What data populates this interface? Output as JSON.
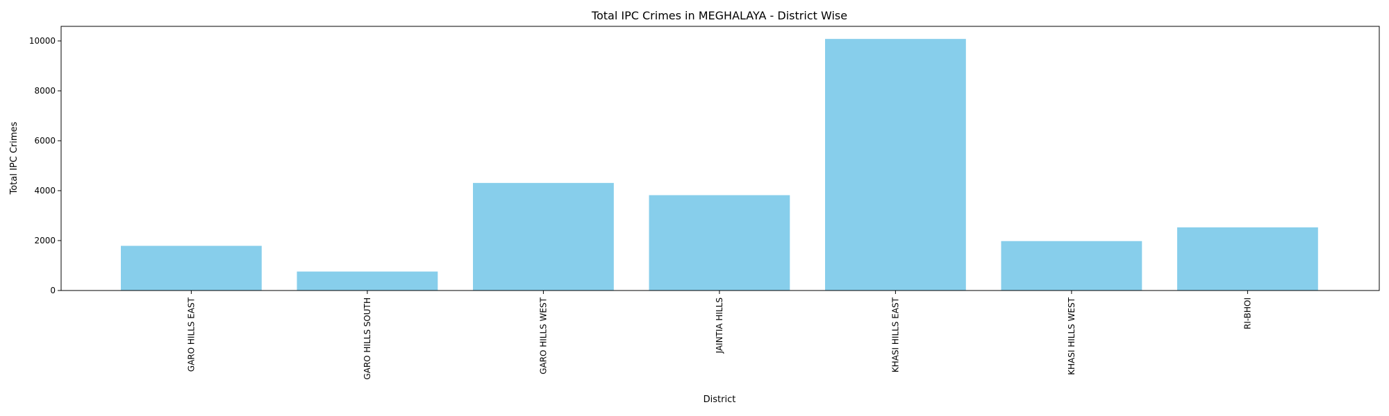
{
  "chart_data": {
    "type": "bar",
    "title": "Total IPC Crimes in MEGHALAYA - District Wise",
    "xlabel": "District",
    "ylabel": "Total IPC Crimes",
    "categories": [
      "GARO HILLS EAST",
      "GARO HILLS SOUTH",
      "GARO HILLS WEST",
      "JAINTIA HILLS",
      "KHASI HILLS EAST",
      "KHASI HILLS WEST",
      "RI-BHOI"
    ],
    "values": [
      1790,
      760,
      4310,
      3820,
      10080,
      1980,
      2530
    ],
    "ylim": [
      0,
      10584
    ],
    "yticks": [
      0,
      2000,
      4000,
      6000,
      8000,
      10000
    ],
    "bar_color": "#87CEEB",
    "grid": false,
    "x_tick_rotation": 90
  }
}
